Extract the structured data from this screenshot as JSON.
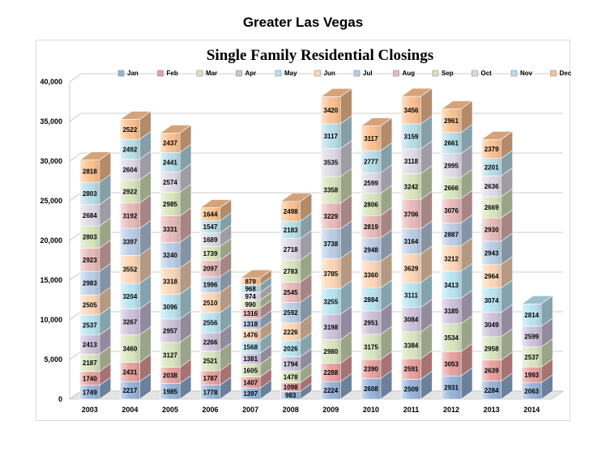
{
  "page_title": "Greater Las Vegas",
  "chart_data": {
    "type": "bar",
    "stacked": true,
    "title": "Single Family Residential Closings",
    "xlabel": "",
    "ylabel": "",
    "ylim": [
      0,
      40000
    ],
    "yticks": [
      "0",
      "5,000",
      "10,000",
      "15,000",
      "20,000",
      "25,000",
      "30,000",
      "35,000",
      "40,000"
    ],
    "grid": true,
    "legend": "top",
    "categories": [
      "2003",
      "2004",
      "2005",
      "2006",
      "2007",
      "2008",
      "2009",
      "2010",
      "2011",
      "2012",
      "2013",
      "2014"
    ],
    "series": [
      {
        "name": "Jan",
        "color": "#95b3d7",
        "values": [
          1749,
          2217,
          1985,
          1778,
          1397,
          983,
          2224,
          2608,
          2509,
          2931,
          2284,
          2063
        ]
      },
      {
        "name": "Feb",
        "color": "#e6a09e",
        "values": [
          1740,
          2431,
          2038,
          1787,
          1407,
          1098,
          2288,
          2390,
          2591,
          3053,
          2639,
          1993
        ]
      },
      {
        "name": "Mar",
        "color": "#d7e4bd",
        "values": [
          2187,
          3460,
          3127,
          2521,
          1605,
          1478,
          2980,
          3175,
          3384,
          3534,
          2958,
          2537
        ]
      },
      {
        "name": "Apr",
        "color": "#ccc1da",
        "values": [
          2413,
          3267,
          2957,
          2266,
          1381,
          1794,
          3198,
          2951,
          3084,
          3185,
          3049,
          2599
        ]
      },
      {
        "name": "May",
        "color": "#b7e3f0",
        "values": [
          2537,
          3204,
          3096,
          2556,
          1568,
          2026,
          3255,
          2884,
          3111,
          3413,
          3074,
          2814
        ]
      },
      {
        "name": "Jun",
        "color": "#fcd5b5",
        "values": [
          2505,
          3552,
          3318,
          2510,
          1476,
          2226,
          3785,
          3360,
          3629,
          3212,
          2964,
          null
        ]
      },
      {
        "name": "Jul",
        "color": "#b9cde5",
        "values": [
          2983,
          3397,
          3240,
          1996,
          1318,
          2592,
          3738,
          2948,
          3164,
          2887,
          2943,
          null
        ]
      },
      {
        "name": "Aug",
        "color": "#e6b9b8",
        "values": [
          2923,
          3192,
          3331,
          2097,
          1316,
          2545,
          3229,
          2819,
          3706,
          3076,
          2930,
          null
        ]
      },
      {
        "name": "Sep",
        "color": "#d8e4bc",
        "values": [
          2803,
          2922,
          2985,
          1739,
          990,
          2783,
          3358,
          2806,
          3242,
          2666,
          2669,
          null
        ]
      },
      {
        "name": "Oct",
        "color": "#ddd9e6",
        "values": [
          2684,
          2604,
          2574,
          1689,
          974,
          2718,
          3535,
          2599,
          3118,
          2995,
          2636,
          null
        ]
      },
      {
        "name": "Nov",
        "color": "#b7dde8",
        "values": [
          2803,
          2492,
          2441,
          1547,
          968,
          2183,
          3117,
          2777,
          3159,
          2661,
          2201,
          null
        ]
      },
      {
        "name": "Dec",
        "color": "#fac090",
        "values": [
          2818,
          2522,
          2437,
          1644,
          879,
          2498,
          3420,
          3117,
          3456,
          2961,
          2379,
          null
        ]
      }
    ]
  }
}
